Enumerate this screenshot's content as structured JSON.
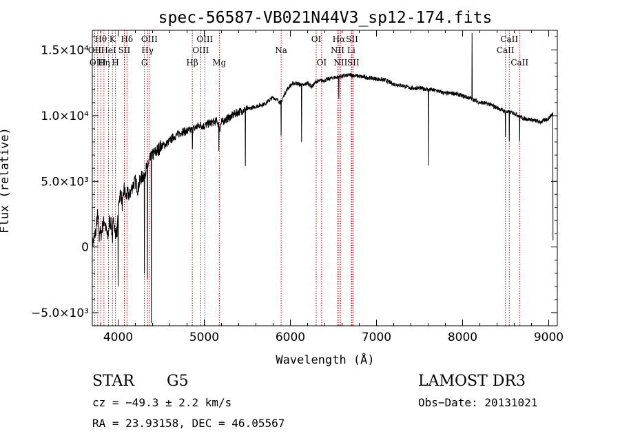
{
  "chart_data": {
    "type": "line",
    "title": "spec-56587-VB021N44V3_sp12-174.fits",
    "xlabel": "Wavelength (Å)",
    "ylabel": "Flux (relative)",
    "xlim": [
      3700,
      9100
    ],
    "ylim": [
      -6000,
      16500
    ],
    "x_ticks": [
      4000,
      5000,
      6000,
      7000,
      8000,
      9000
    ],
    "x_tick_labels": [
      "4000",
      "5000",
      "6000",
      "7000",
      "8000",
      "9000"
    ],
    "y_ticks": [
      -5000,
      0,
      5000,
      10000,
      15000
    ],
    "y_tick_labels": [
      "−5.0×10³",
      "0",
      "5.0×10³",
      "1.0×10⁴",
      "1.5×10⁴"
    ],
    "grid": false,
    "series": [
      {
        "points": [
          [
            3700,
            200
          ],
          [
            3720,
            600
          ],
          [
            3740,
            1200
          ],
          [
            3760,
            2400
          ],
          [
            3780,
            1500
          ],
          [
            3800,
            900
          ],
          [
            3820,
            1600
          ],
          [
            3840,
            2100
          ],
          [
            3860,
            1300
          ],
          [
            3880,
            700
          ],
          [
            3900,
            2000
          ],
          [
            3920,
            1700
          ],
          [
            3930,
            900
          ],
          [
            3950,
            2300
          ],
          [
            3970,
            800
          ],
          [
            3990,
            1400
          ],
          [
            4010,
            3600
          ],
          [
            4030,
            4200
          ],
          [
            4050,
            3100
          ],
          [
            4070,
            4500
          ],
          [
            4090,
            3800
          ],
          [
            4110,
            4100
          ],
          [
            4130,
            3900
          ],
          [
            4150,
            4300
          ],
          [
            4170,
            4700
          ],
          [
            4200,
            5000
          ],
          [
            4230,
            4400
          ],
          [
            4260,
            5200
          ],
          [
            4290,
            5400
          ],
          [
            4310,
            5700
          ],
          [
            4330,
            6000
          ],
          [
            4350,
            6300
          ],
          [
            4370,
            6600
          ],
          [
            4400,
            7000
          ],
          [
            4450,
            7300
          ],
          [
            4500,
            7700
          ],
          [
            4550,
            7800
          ],
          [
            4600,
            8100
          ],
          [
            4650,
            8400
          ],
          [
            4700,
            8600
          ],
          [
            4750,
            8800
          ],
          [
            4800,
            8800
          ],
          [
            4850,
            8900
          ],
          [
            4900,
            9100
          ],
          [
            4950,
            9300
          ],
          [
            5000,
            9200
          ],
          [
            5050,
            9400
          ],
          [
            5100,
            9500
          ],
          [
            5150,
            9600
          ],
          [
            5180,
            9000
          ],
          [
            5200,
            9500
          ],
          [
            5300,
            9900
          ],
          [
            5400,
            10300
          ],
          [
            5500,
            10500
          ],
          [
            5600,
            10700
          ],
          [
            5700,
            10900
          ],
          [
            5800,
            11400
          ],
          [
            5890,
            11000
          ],
          [
            5950,
            11900
          ],
          [
            6000,
            12300
          ],
          [
            6050,
            12500
          ],
          [
            6100,
            12400
          ],
          [
            6150,
            12300
          ],
          [
            6200,
            12500
          ],
          [
            6250,
            12200
          ],
          [
            6300,
            12600
          ],
          [
            6400,
            12700
          ],
          [
            6500,
            12900
          ],
          [
            6600,
            13000
          ],
          [
            6700,
            13100
          ],
          [
            6800,
            13000
          ],
          [
            6900,
            12900
          ],
          [
            7000,
            12800
          ],
          [
            7100,
            12700
          ],
          [
            7200,
            12400
          ],
          [
            7300,
            12300
          ],
          [
            7400,
            12100
          ],
          [
            7500,
            12100
          ],
          [
            7600,
            12000
          ],
          [
            7700,
            11900
          ],
          [
            7800,
            11700
          ],
          [
            7900,
            11700
          ],
          [
            8000,
            11500
          ],
          [
            8100,
            11300
          ],
          [
            8200,
            11000
          ],
          [
            8300,
            10900
          ],
          [
            8400,
            10600
          ],
          [
            8500,
            10300
          ],
          [
            8600,
            10200
          ],
          [
            8700,
            9800
          ],
          [
            8800,
            9700
          ],
          [
            8900,
            9500
          ],
          [
            9000,
            9800
          ],
          [
            9050,
            10200
          ]
        ]
      }
    ],
    "absorption_features": [
      {
        "x": 3780,
        "y": 400
      },
      {
        "x": 3935,
        "y": 300
      },
      {
        "x": 3970,
        "y": 600
      },
      {
        "x": 4000,
        "y": -3000
      },
      {
        "x": 4305,
        "y": -2000
      },
      {
        "x": 4340,
        "y": -2400
      },
      {
        "x": 4385,
        "y": -5800
      },
      {
        "x": 4862,
        "y": 7500
      },
      {
        "x": 5170,
        "y": 7300
      },
      {
        "x": 5477,
        "y": 6200
      },
      {
        "x": 5893,
        "y": 8500
      },
      {
        "x": 6130,
        "y": 8000
      },
      {
        "x": 6563,
        "y": 11300
      },
      {
        "x": 7605,
        "y": 6200
      },
      {
        "x": 8498,
        "y": 8400
      },
      {
        "x": 8542,
        "y": 8100
      },
      {
        "x": 8662,
        "y": 8100
      },
      {
        "x": 9050,
        "y": 500
      }
    ],
    "emission_features": [
      {
        "x": 8110,
        "y": 16300
      },
      {
        "x": 8125,
        "y": 11200
      }
    ],
    "spectral_lines": [
      {
        "name": "Hθ",
        "x": 3798,
        "row": 0
      },
      {
        "name": "OII",
        "x": 3727,
        "row": 1
      },
      {
        "name": "OIII",
        "x": 3763,
        "row": 2
      },
      {
        "name": "Hη",
        "x": 3835,
        "row": 2
      },
      {
        "name": "HeI",
        "x": 3889,
        "row": 1
      },
      {
        "name": "K",
        "x": 3934,
        "row": 0
      },
      {
        "name": "H",
        "x": 3969,
        "row": 2
      },
      {
        "name": "SII",
        "x": 4072,
        "row": 1
      },
      {
        "name": "Hδ",
        "x": 4102,
        "row": 0
      },
      {
        "name": "G",
        "x": 4305,
        "row": 2
      },
      {
        "name": "Hγ",
        "x": 4341,
        "row": 1
      },
      {
        "name": "OIII",
        "x": 4363,
        "row": 0
      },
      {
        "name": "Hβ",
        "x": 4861,
        "row": 2
      },
      {
        "name": "OIII",
        "x": 4959,
        "row": 1
      },
      {
        "name": "OIII",
        "x": 5007,
        "row": 0
      },
      {
        "name": "Mg",
        "x": 5175,
        "row": 2
      },
      {
        "name": "Na",
        "x": 5893,
        "row": 1
      },
      {
        "name": "OI",
        "x": 6300,
        "row": 0
      },
      {
        "name": "OI",
        "x": 6363,
        "row": 2
      },
      {
        "name": "NII",
        "x": 6548,
        "row": 1
      },
      {
        "name": "Hα",
        "x": 6563,
        "row": 0
      },
      {
        "name": "NII",
        "x": 6583,
        "row": 2
      },
      {
        "name": "Li",
        "x": 6707,
        "row": 1
      },
      {
        "name": "SII",
        "x": 6716,
        "row": 0
      },
      {
        "name": "SII",
        "x": 6731,
        "row": 2
      },
      {
        "name": "CaII",
        "x": 8498,
        "row": 1
      },
      {
        "name": "CaII",
        "x": 8542,
        "row": 0
      },
      {
        "name": "CaII",
        "x": 8662,
        "row": 2
      }
    ],
    "colors": {
      "spectrum": "#000000",
      "lines": "#cc0000"
    }
  },
  "info": {
    "class": "STAR",
    "subclass": "G5",
    "survey": "LAMOST DR3",
    "cz": "cz = −49.3 ± 2.2 km/s",
    "obs_date": "Obs−Date: 20131021",
    "radec": "RA =  23.93158, DEC =  46.05567"
  }
}
